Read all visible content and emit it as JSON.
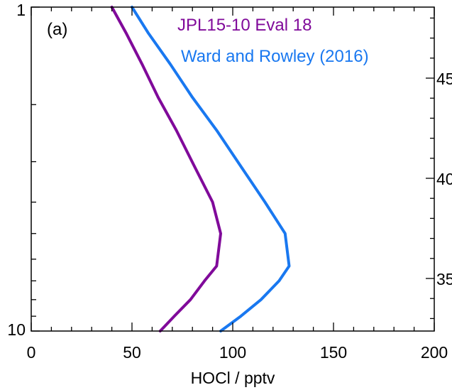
{
  "chart_data": {
    "type": "line",
    "panel_label": "(a)",
    "xlabel": "HOCl / pptv",
    "xlim": [
      0,
      200
    ],
    "x_ticks": [
      0,
      50,
      100,
      150,
      200
    ],
    "x_tick_labels": [
      "0",
      "50",
      "100",
      "150",
      "200"
    ],
    "y_axis_left": {
      "scale": "log",
      "reversed": true,
      "ylim": [
        1,
        10
      ],
      "tick_labels": [
        "1",
        "10"
      ]
    },
    "y_axis_right": {
      "partial_tick_labels": [
        "45",
        "40",
        "35"
      ],
      "values": [
        45,
        40,
        35
      ]
    },
    "grid": false,
    "series": [
      {
        "name": "JPL15-10 Eval 18",
        "color": "#800a9a",
        "x": [
          40,
          47,
          55,
          63,
          72,
          81,
          90,
          94,
          92,
          86,
          79,
          71,
          64
        ],
        "y": [
          1.0,
          1.2,
          1.5,
          1.9,
          2.4,
          3.1,
          4.0,
          5.0,
          6.3,
          7.0,
          8.0,
          9.0,
          10.0
        ]
      },
      {
        "name": "Ward and Rowley (2016)",
        "color": "#1978f0",
        "x": [
          50,
          58,
          69,
          80,
          92,
          104,
          116,
          126,
          128,
          123,
          114,
          104,
          94
        ],
        "y": [
          1.0,
          1.2,
          1.5,
          1.9,
          2.4,
          3.1,
          4.0,
          5.0,
          6.3,
          7.0,
          8.0,
          9.0,
          10.0
        ]
      }
    ]
  }
}
